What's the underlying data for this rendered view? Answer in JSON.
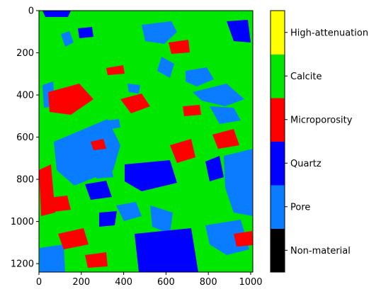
{
  "chart_data": {
    "type": "heatmap",
    "title": "",
    "xlabel": "",
    "ylabel": "",
    "xlim": [
      0,
      1010
    ],
    "ylim": [
      1240,
      0
    ],
    "x_ticks": [
      "0",
      "200",
      "400",
      "600",
      "800",
      "1000"
    ],
    "y_ticks": [
      "0",
      "200",
      "400",
      "600",
      "800",
      "1000",
      "1200"
    ],
    "x_tick_values": [
      0,
      200,
      400,
      600,
      800,
      1000
    ],
    "y_tick_values": [
      0,
      200,
      400,
      600,
      800,
      1000,
      1200
    ],
    "colorbar": {
      "categories": [
        {
          "label": "Non-material",
          "color": "#000000"
        },
        {
          "label": "Pore",
          "color": "#0a7cff"
        },
        {
          "label": "Quartz",
          "color": "#0000ff"
        },
        {
          "label": "Microporosity",
          "color": "#ff0000"
        },
        {
          "label": "Calcite",
          "color": "#00e800"
        },
        {
          "label": "High-attenuation",
          "color": "#ffff00"
        }
      ]
    }
  }
}
